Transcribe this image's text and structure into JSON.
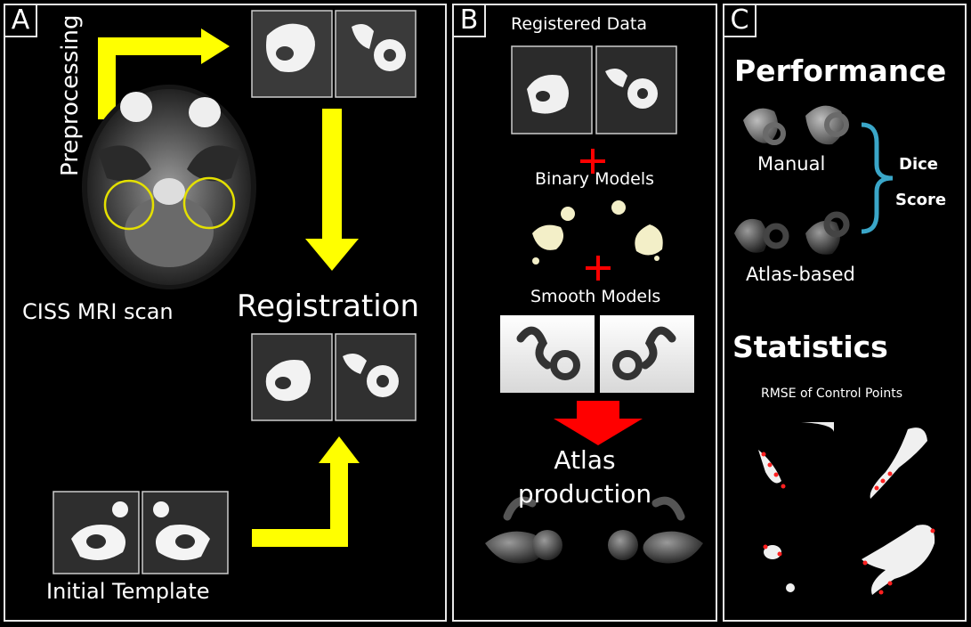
{
  "panelA": {
    "letter": "A",
    "preprocessing": "Preprocessing",
    "mri_caption": "CISS MRI scan",
    "registration": "Registration",
    "initial_template": "Initial Template"
  },
  "panelB": {
    "letter": "B",
    "registered_data": "Registered Data",
    "binary_models": "Binary Models",
    "smooth_models": "Smooth Models",
    "atlas_line1": "Atlas",
    "atlas_line2": "production"
  },
  "panelC": {
    "letter": "C",
    "performance": "Performance",
    "manual": "Manual",
    "dice_line1": "Dice",
    "dice_line2": "Score",
    "atlas_based": "Atlas-based",
    "statistics": "Statistics",
    "rmse": "RMSE of Control Points"
  },
  "colors": {
    "arrow_yellow": "#ffff00",
    "arrow_red": "#ff0000",
    "brace_blue": "#3aa6c8",
    "binary_model": "#f3efc8",
    "border": "#e8e8e8"
  }
}
